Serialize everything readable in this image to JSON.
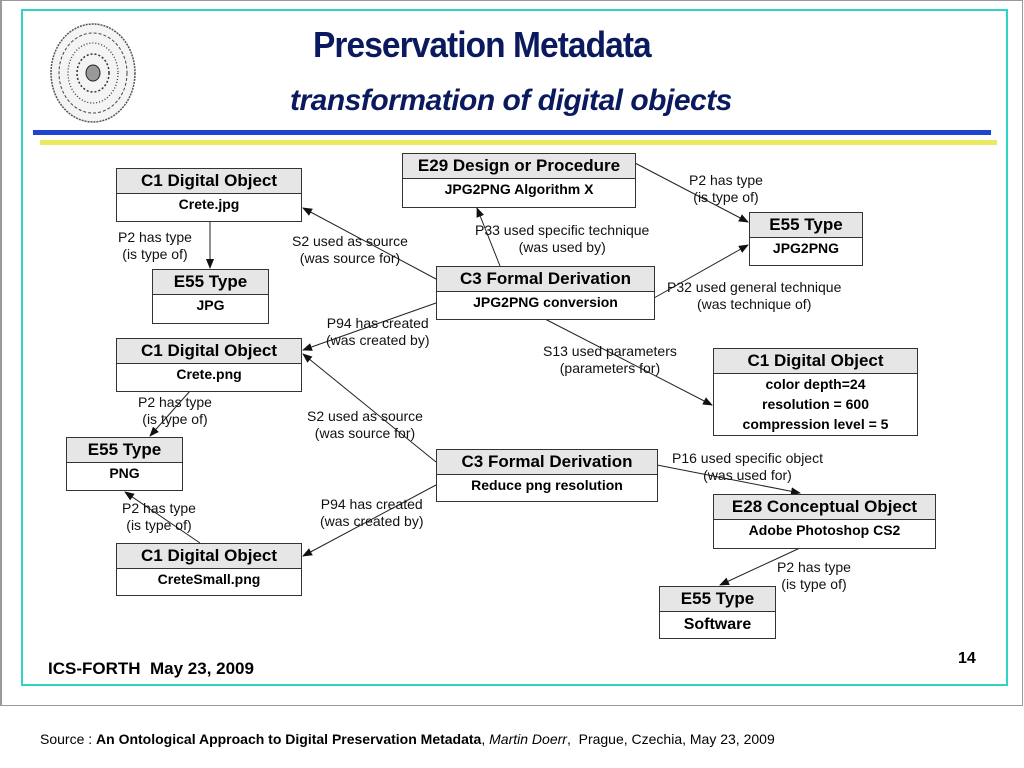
{
  "slide": {
    "title": "Preservation Metadata",
    "subtitle": "transformation of digital objects",
    "footer": "ICS-FORTH  May 23, 2009",
    "page_number": "14",
    "logo": "Phaistos disc",
    "colors": {
      "title": "#0b1a5e",
      "border": "#2fd5c4",
      "blue_rule": "#1f44d0",
      "yellow_rule": "#eaea60"
    }
  },
  "nodes": [
    {
      "id": "crete_jpg",
      "class": "C1 Digital Object",
      "value": "Crete.jpg"
    },
    {
      "id": "type_jpg",
      "class": "E55 Type",
      "value": "JPG"
    },
    {
      "id": "e29",
      "class": "E29 Design or Procedure",
      "value": "JPG2PNG Algorithm X"
    },
    {
      "id": "type_jpg2png",
      "class": "E55 Type",
      "value": "JPG2PNG"
    },
    {
      "id": "c3_conv",
      "class": "C3 Formal Derivation",
      "value": "JPG2PNG conversion"
    },
    {
      "id": "crete_png",
      "class": "C1 Digital Object",
      "value": "Crete.png"
    },
    {
      "id": "params",
      "class": "C1 Digital Object",
      "lines": [
        "color depth=24",
        "resolution = 600",
        "compression level = 5"
      ]
    },
    {
      "id": "type_png",
      "class": "E55 Type",
      "value": "PNG"
    },
    {
      "id": "c3_reduce",
      "class": "C3 Formal Derivation",
      "value": "Reduce png resolution"
    },
    {
      "id": "e28",
      "class": "E28 Conceptual Object",
      "value": "Adobe Photoshop CS2"
    },
    {
      "id": "crete_small",
      "class": "C1 Digital Object",
      "value": "CreteSmall.png"
    },
    {
      "id": "type_software",
      "class": "E55 Type",
      "value": "Software"
    }
  ],
  "edges": [
    {
      "from": "crete_jpg",
      "to": "type_jpg",
      "label": [
        "P2 has type",
        "(is type of)"
      ]
    },
    {
      "from": "c3_conv",
      "to": "crete_jpg",
      "label": [
        "S2 used as source",
        "(was source for)"
      ]
    },
    {
      "from": "c3_conv",
      "to": "e29",
      "label": [
        "P33 used specific technique",
        "(was used by)"
      ]
    },
    {
      "from": "e29",
      "to": "type_jpg2png",
      "label": [
        "P2 has type",
        "(is type of)"
      ]
    },
    {
      "from": "c3_conv",
      "to": "type_jpg2png",
      "label": [
        "P32 used general technique",
        "(was technique of)"
      ]
    },
    {
      "from": "c3_conv",
      "to": "crete_png",
      "label": [
        "P94 has created",
        "(was created by)"
      ]
    },
    {
      "from": "c3_conv",
      "to": "params",
      "label": [
        "S13 used parameters",
        "(parameters for)"
      ]
    },
    {
      "from": "crete_png",
      "to": "type_png",
      "label": [
        "P2 has type",
        "(is type of)"
      ]
    },
    {
      "from": "c3_reduce",
      "to": "crete_png",
      "label": [
        "S2 used as source",
        "(was source for)"
      ]
    },
    {
      "from": "c3_reduce",
      "to": "e28",
      "label": [
        "P16 used specific object",
        "(was used for)"
      ]
    },
    {
      "from": "crete_small",
      "to": "type_png",
      "label": [
        "P2 has type",
        "(is type of)"
      ]
    },
    {
      "from": "c3_reduce",
      "to": "crete_small",
      "label": [
        "P94 has created",
        "(was created by)"
      ]
    },
    {
      "from": "e28",
      "to": "type_software",
      "label": [
        "P2 has type",
        "(is type of)"
      ]
    }
  ],
  "source": {
    "prefix": "Source : ",
    "title": "An Ontological Approach to Digital Preservation Metadata",
    "author": "Martin Doerr",
    "rest": "  Prague, Czechia, May 23, 2009"
  }
}
